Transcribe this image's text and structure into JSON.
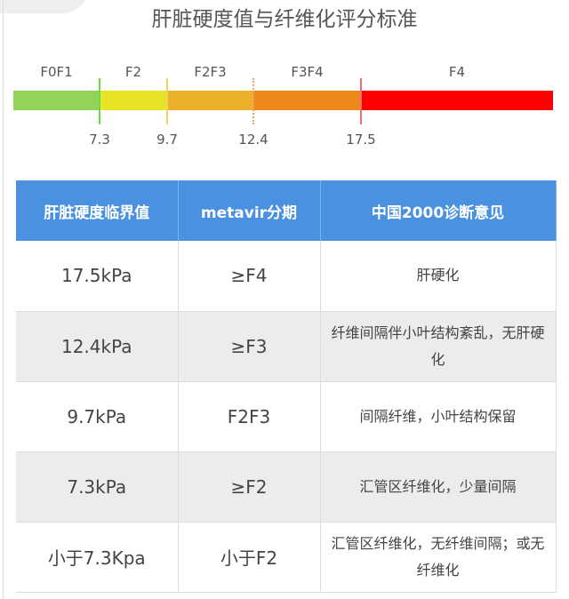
{
  "title": "肝脏硬度值与纤维化评分标准",
  "scale": {
    "segments": [
      {
        "label": "F0F1",
        "color": "#93d35a"
      },
      {
        "label": "F2",
        "color": "#e6e425"
      },
      {
        "label": "F2F3",
        "color": "#ecb12a"
      },
      {
        "label": "F3F4",
        "color": "#ee8a1c"
      },
      {
        "label": "F4",
        "color": "#fe0000"
      }
    ],
    "thresholds": [
      {
        "value": "7.3",
        "color": "#66dd44",
        "style": "solid"
      },
      {
        "value": "9.7",
        "color": "#f3d060",
        "style": "solid"
      },
      {
        "value": "12.4",
        "color": "#f0a060",
        "style": "dotted"
      },
      {
        "value": "17.5",
        "color": "#f07070",
        "style": "solid"
      }
    ]
  },
  "table": {
    "headers": [
      "肝脏硬度临界值",
      "metavir分期",
      "中国2000诊断意见"
    ],
    "header_color": "#4a91e0",
    "rows": [
      [
        "17.5kPa",
        "≥F4",
        "肝硬化"
      ],
      [
        "12.4kPa",
        "≥F3",
        "纤维间隔伴小叶结构紊乱，无肝硬化"
      ],
      [
        "9.7kPa",
        "F2F3",
        "间隔纤维，小叶结构保留"
      ],
      [
        "7.3kPa",
        "≥F2",
        "汇管区纤维化，少量间隔"
      ],
      [
        "小于7.3Kpa",
        "小于F2",
        "汇管区纤维化，无纤维间隔；或无纤维化"
      ]
    ]
  }
}
